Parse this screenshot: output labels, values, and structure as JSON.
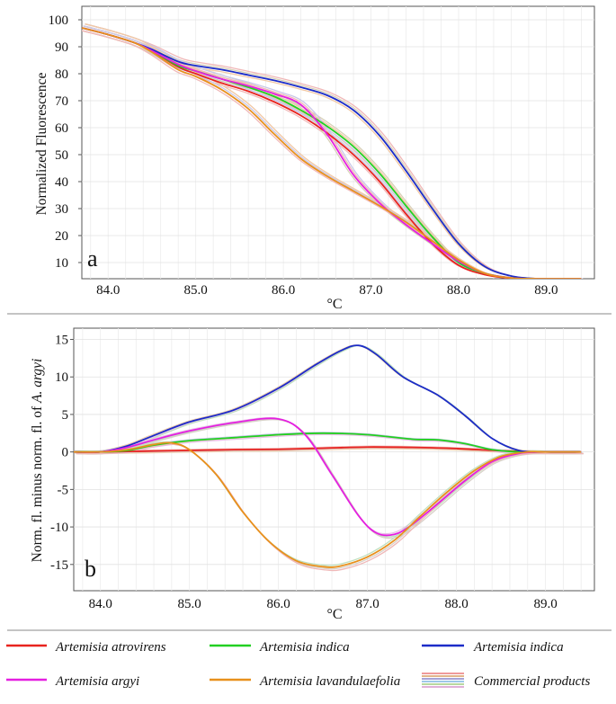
{
  "chart_data": [
    {
      "type": "line",
      "panel_label": "a",
      "xlabel": "°C",
      "ylabel": "Normalized Fluorescence",
      "xlim": [
        83.7,
        89.55
      ],
      "ylim": [
        4,
        105
      ],
      "xticks": [
        "84.0",
        "85.0",
        "86.0",
        "87.0",
        "88.0",
        "89.0"
      ],
      "xtick_values": [
        84.0,
        85.0,
        86.0,
        87.0,
        88.0,
        89.0
      ],
      "yticks": [
        "10",
        "20",
        "30",
        "40",
        "50",
        "60",
        "70",
        "80",
        "90",
        "100"
      ],
      "ytick_values": [
        10,
        20,
        30,
        40,
        50,
        60,
        70,
        80,
        90,
        100
      ],
      "grid": true,
      "series": [
        {
          "name": "Artemisia atrovirens",
          "color": "#e8231e",
          "x": [
            83.7,
            84.0,
            84.3,
            84.5,
            84.8,
            85.0,
            85.3,
            85.6,
            85.9,
            86.2,
            86.5,
            86.8,
            87.1,
            87.4,
            87.7,
            88.0,
            88.3,
            88.6,
            88.9,
            89.2,
            89.4
          ],
          "y": [
            97,
            94.5,
            91.5,
            88.5,
            82.5,
            80,
            76.5,
            73.5,
            69.5,
            64.5,
            58,
            50,
            40,
            28,
            17,
            9,
            5.5,
            4.2,
            4,
            4,
            4
          ]
        },
        {
          "name": "Artemisia indica (green)",
          "color": "#22d022",
          "x": [
            83.7,
            84.0,
            84.3,
            84.5,
            84.8,
            85.0,
            85.3,
            85.6,
            85.9,
            86.2,
            86.5,
            86.8,
            87.1,
            87.4,
            87.7,
            88.0,
            88.3,
            88.6,
            88.9,
            89.2,
            89.4
          ],
          "y": [
            97,
            94.5,
            91.5,
            88.5,
            83,
            81,
            78,
            75,
            71.5,
            66.5,
            60.5,
            53,
            43,
            31,
            19.5,
            10,
            6,
            4.3,
            4,
            4,
            4
          ]
        },
        {
          "name": "Artemisia indica (blue)",
          "color": "#1c2cc8",
          "x": [
            83.7,
            84.0,
            84.3,
            84.5,
            84.8,
            85.0,
            85.3,
            85.6,
            85.9,
            86.2,
            86.5,
            86.8,
            87.1,
            87.4,
            87.7,
            88.0,
            88.3,
            88.6,
            88.9,
            89.2,
            89.4
          ],
          "y": [
            97,
            94.5,
            91.5,
            89,
            84.5,
            83,
            81.5,
            79.5,
            77.5,
            75,
            72,
            66.5,
            57,
            44,
            30,
            17,
            8.5,
            5,
            4,
            4,
            4
          ]
        },
        {
          "name": "Artemisia argyi",
          "color": "#e51fe0",
          "x": [
            83.7,
            84.0,
            84.3,
            84.5,
            84.8,
            85.0,
            85.3,
            85.6,
            85.9,
            86.2,
            86.5,
            86.8,
            87.1,
            87.4,
            87.7,
            88.0,
            88.3,
            88.6,
            88.9,
            89.2,
            89.4
          ],
          "y": [
            97,
            94.5,
            91.5,
            88.5,
            83.5,
            81,
            78,
            75.5,
            72.5,
            68.5,
            57.5,
            42.5,
            32,
            24,
            17,
            10.5,
            6,
            4.3,
            4,
            4,
            4
          ]
        },
        {
          "name": "Artemisia lavandulaefolia",
          "color": "#e8901c",
          "x": [
            83.7,
            84.0,
            84.3,
            84.5,
            84.8,
            85.0,
            85.3,
            85.6,
            85.9,
            86.2,
            86.5,
            86.8,
            87.1,
            87.4,
            87.7,
            88.0,
            88.3,
            88.6,
            88.9,
            89.2,
            89.4
          ],
          "y": [
            97,
            94.5,
            91.5,
            88,
            81.5,
            79,
            74,
            67,
            57.5,
            48.5,
            42,
            36.5,
            31,
            25,
            18,
            11,
            6,
            4.3,
            4,
            4,
            4
          ]
        }
      ]
    },
    {
      "type": "line",
      "panel_label": "b",
      "xlabel": "°C",
      "ylabel_prefix": "Norm. fl. minus norm. fl. of ",
      "ylabel_italic": "A. argyi",
      "xlim": [
        83.7,
        89.55
      ],
      "ylim": [
        -18.5,
        16.5
      ],
      "xticks": [
        "84.0",
        "85.0",
        "86.0",
        "87.0",
        "88.0",
        "89.0"
      ],
      "xtick_values": [
        84.0,
        85.0,
        86.0,
        87.0,
        88.0,
        89.0
      ],
      "yticks": [
        "15",
        "10",
        "5",
        "0",
        "-5",
        "-10",
        "-15"
      ],
      "ytick_values": [
        15,
        10,
        5,
        0,
        -5,
        -10,
        -15
      ],
      "grid": true,
      "series": [
        {
          "name": "Artemisia atrovirens",
          "color": "#e8231e",
          "x": [
            83.7,
            84.0,
            84.5,
            85.0,
            85.5,
            86.0,
            86.5,
            87.0,
            87.5,
            88.0,
            88.5,
            89.0,
            89.4
          ],
          "y": [
            0,
            0,
            0.1,
            0.2,
            0.3,
            0.35,
            0.5,
            0.65,
            0.6,
            0.45,
            0.15,
            0,
            0
          ]
        },
        {
          "name": "Artemisia indica (green)",
          "color": "#22d022",
          "x": [
            83.7,
            84.0,
            84.3,
            84.6,
            85.0,
            85.5,
            86.0,
            86.5,
            87.0,
            87.5,
            87.8,
            88.1,
            88.4,
            88.7,
            89.0,
            89.4
          ],
          "y": [
            0,
            0,
            0.2,
            0.9,
            1.5,
            1.9,
            2.3,
            2.5,
            2.3,
            1.7,
            1.6,
            1.1,
            0.3,
            0,
            0,
            0
          ]
        },
        {
          "name": "Artemisia indica (blue)",
          "color": "#1c2cc8",
          "x": [
            83.7,
            84.0,
            84.3,
            84.6,
            85.0,
            85.5,
            86.0,
            86.4,
            86.7,
            86.9,
            87.1,
            87.4,
            87.8,
            88.1,
            88.4,
            88.7,
            89.0,
            89.4
          ],
          "y": [
            0,
            0,
            0.8,
            2.2,
            4,
            5.6,
            8.5,
            11.5,
            13.5,
            14.2,
            13,
            10,
            7.5,
            4.8,
            1.8,
            0.2,
            0,
            0
          ]
        },
        {
          "name": "Artemisia argyi",
          "color": "#e51fe0",
          "x": [
            83.7,
            84.0,
            84.3,
            84.6,
            85.0,
            85.5,
            86.0,
            86.3,
            86.6,
            86.9,
            87.1,
            87.3,
            87.5,
            87.8,
            88.1,
            88.4,
            88.7,
            89.0,
            89.4
          ],
          "y": [
            0,
            0,
            0.6,
            1.6,
            2.8,
            3.9,
            4.4,
            2.3,
            -3,
            -8.5,
            -10.8,
            -11,
            -9.7,
            -6.8,
            -3.8,
            -1.3,
            -0.2,
            0,
            0
          ]
        },
        {
          "name": "Artemisia lavandulaefolia",
          "color": "#e8901c",
          "x": [
            83.7,
            84.0,
            84.3,
            84.6,
            84.8,
            85.0,
            85.3,
            85.6,
            85.9,
            86.2,
            86.5,
            86.7,
            87.0,
            87.3,
            87.6,
            87.9,
            88.2,
            88.5,
            88.8,
            89.0,
            89.4
          ],
          "y": [
            0,
            0,
            0.3,
            1.0,
            1.2,
            0.3,
            -3,
            -8,
            -12,
            -14.5,
            -15.3,
            -15.2,
            -14,
            -11.8,
            -8.5,
            -5.3,
            -2.5,
            -0.6,
            0,
            0,
            0
          ]
        }
      ]
    }
  ],
  "legend": {
    "items": [
      {
        "label": "Artemisia atrovirens",
        "color": "#e8231e"
      },
      {
        "label": "Artemisia indica",
        "color": "#22d022"
      },
      {
        "label": "Artemisia indica",
        "color": "#1c2cc8"
      },
      {
        "label": "Artemisia argyi",
        "color": "#e51fe0"
      },
      {
        "label": "Artemisia lavandulaefolia",
        "color": "#e8901c"
      },
      {
        "label": "Commercial products",
        "color": "#e8a0a0"
      }
    ],
    "commercial_colors": [
      "#ef9a9a",
      "#e2b48a",
      "#a6a2d6",
      "#9ec8e8",
      "#b8d8a0",
      "#e0b0d8"
    ]
  },
  "colors": {
    "commercial_a": [
      "#f0b8b8",
      "#c8c8e8",
      "#f2c8a4",
      "#d8d0b8"
    ],
    "commercial_b": [
      "#f0b8b8",
      "#c8c8e8",
      "#f0d0b0",
      "#e8c0e8",
      "#c0e0c0",
      "#d8d0c8"
    ]
  }
}
